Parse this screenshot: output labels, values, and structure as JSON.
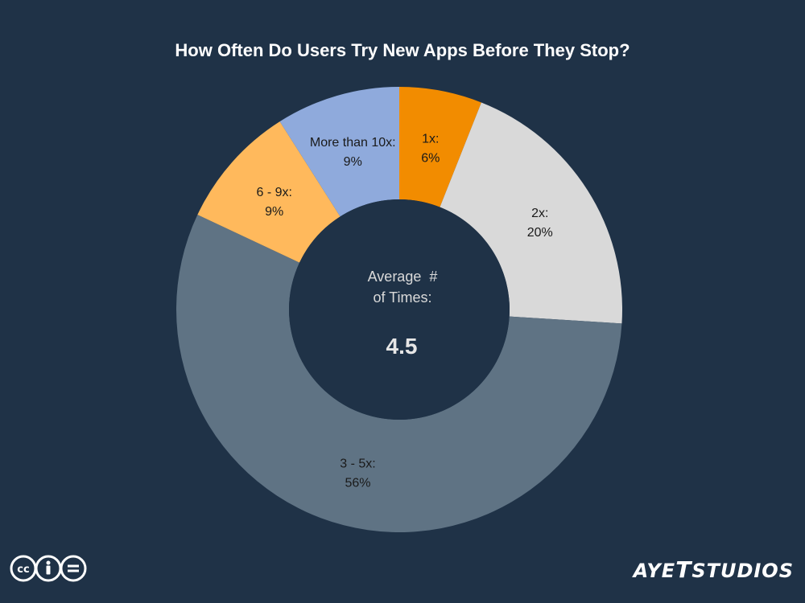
{
  "chart_data": {
    "type": "pie",
    "variant": "donut",
    "title": "How Often Do Users Try New Apps Before They Stop?",
    "slices": [
      {
        "label": "1x:",
        "value": 6,
        "display": "6%",
        "color": "#f28c00",
        "text_color": "#1a1a1a"
      },
      {
        "label": "2x:",
        "value": 20,
        "display": "20%",
        "color": "#d9d9d9",
        "text_color": "#1a1a1a"
      },
      {
        "label": "3 - 5x:",
        "value": 56,
        "display": "56%",
        "color": "#5f7384",
        "text_color": "#1a1a1a"
      },
      {
        "label": "6 - 9x:",
        "value": 9,
        "display": "9%",
        "color": "#ffb95c",
        "text_color": "#1a1a1a"
      },
      {
        "label": "More than 10x:",
        "value": 9,
        "display": "9%",
        "color": "#8faadc",
        "text_color": "#1a1a1a"
      }
    ],
    "center_label_line1": "Average  #",
    "center_label_line2": "of Times:",
    "center_value": "4.5"
  },
  "colors": {
    "background": "#1f3247",
    "title": "#ffffff",
    "center_text": "#d9d9d9",
    "center_value": "#e6e6e6"
  },
  "footer": {
    "license_icon": "creative-commons-by-nd-icon",
    "brand_logo_text": "AYETSTUDIOS"
  }
}
